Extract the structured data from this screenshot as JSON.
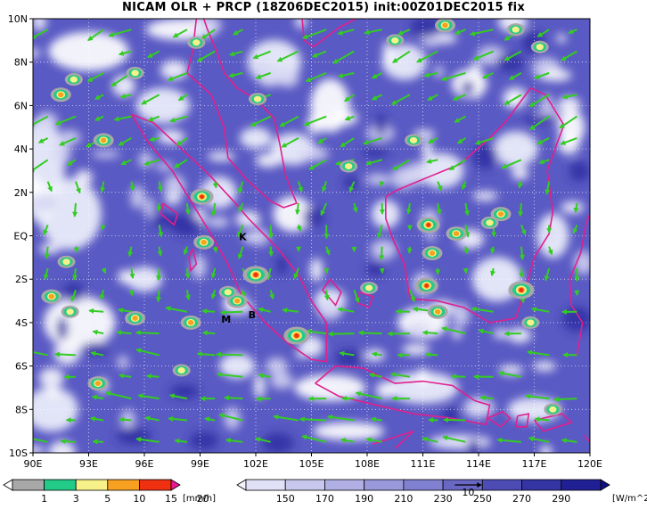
{
  "title": "NICAM OLR + PRCP (18Z06DEC2015) init:00Z01DEC2015 fix",
  "map": {
    "lon_labels": [
      "90E",
      "93E",
      "96E",
      "99E",
      "102E",
      "105E",
      "108E",
      "111E",
      "114E",
      "117E",
      "120E"
    ],
    "lat_labels": [
      "10N",
      "8N",
      "6N",
      "4N",
      "2N",
      "EQ",
      "2S",
      "4S",
      "6S",
      "8S",
      "10S"
    ],
    "site_markers": [
      {
        "label": "K",
        "lon": 101.3,
        "lat": -0.2
      },
      {
        "label": "M",
        "lon": 100.4,
        "lat": -4.0
      },
      {
        "label": "B",
        "lon": 101.8,
        "lat": -3.8
      }
    ],
    "coastline_color": "#e0208c",
    "wind_vector_color": "#33cc22",
    "grid_style": "dotted"
  },
  "precip_colorbar": {
    "levels": [
      "1",
      "3",
      "5",
      "10",
      "15",
      "20"
    ],
    "colors": [
      "#ffffff",
      "#a8a8a8",
      "#22cc88",
      "#f8f088",
      "#f8a020",
      "#f03010",
      "#e81890"
    ],
    "unit": "[mm/h]"
  },
  "olr_colorbar": {
    "levels": [
      "150",
      "170",
      "190",
      "210",
      "230",
      "250",
      "270",
      "290"
    ],
    "colors": [
      "#f4f4fc",
      "#e0e0f6",
      "#c8c8ee",
      "#b0b0e4",
      "#9898da",
      "#8080d0",
      "#6868c4",
      "#4c4cb4",
      "#3434a4",
      "#202094",
      "#101080"
    ],
    "unit": "[W/m^2]",
    "reference_vector_label": "10"
  }
}
